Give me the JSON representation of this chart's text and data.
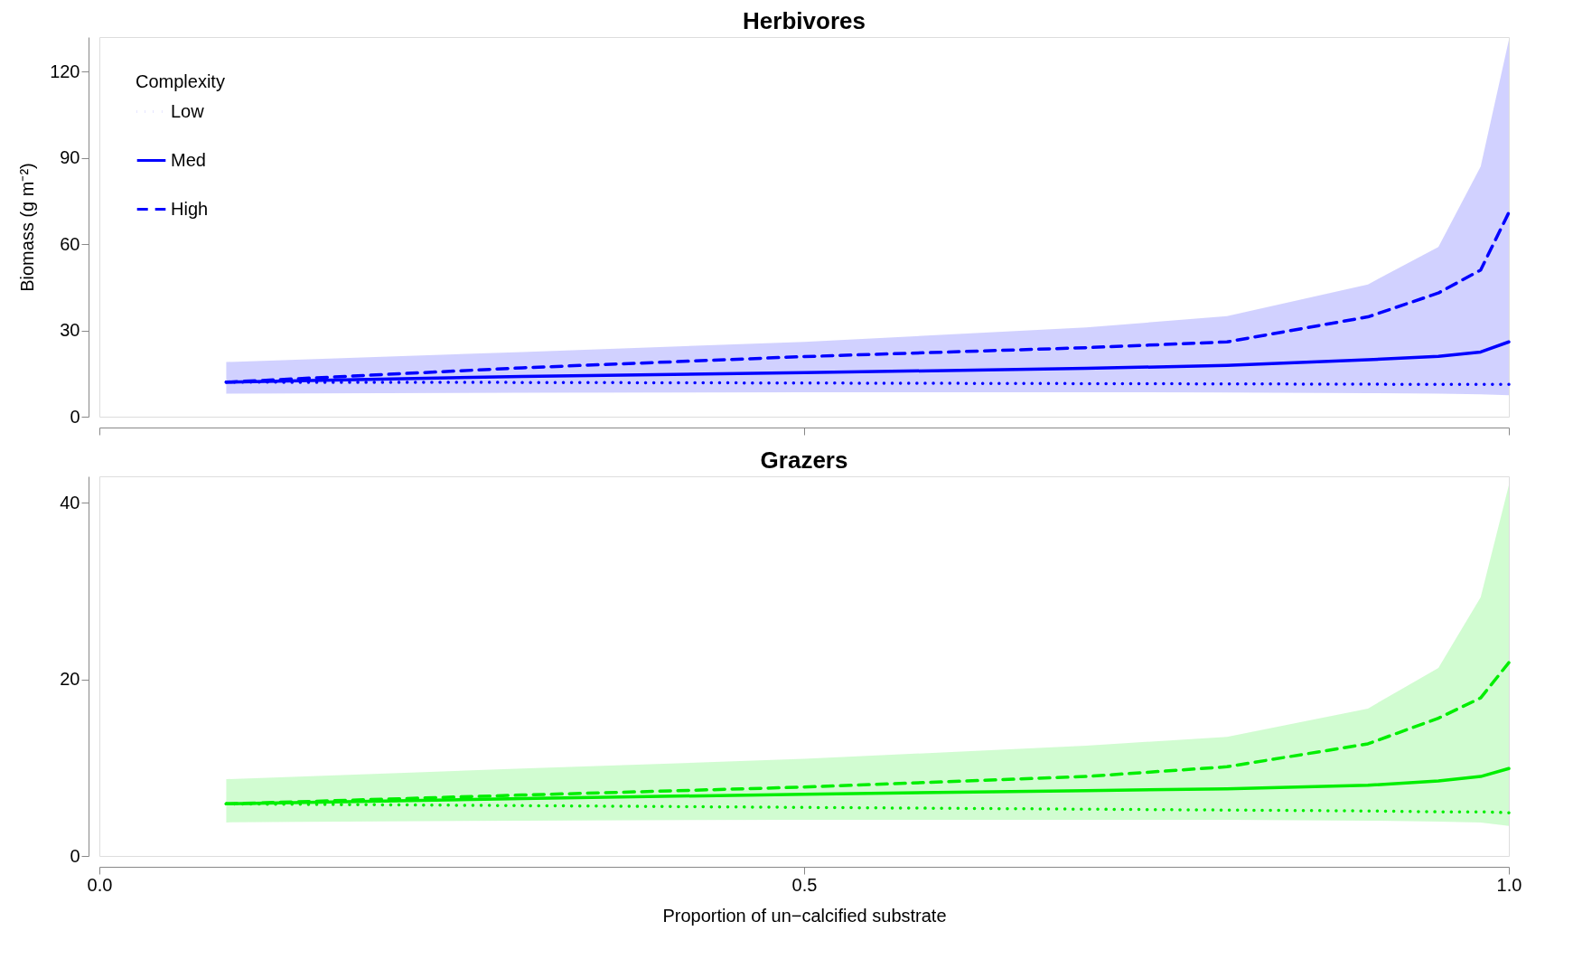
{
  "chart_data": [
    {
      "type": "line",
      "title": "Herbivores",
      "ylabel": "Biomass (g m⁻²)",
      "legend_title": "Complexity",
      "legend": "top left",
      "tick_labels": "y",
      "grid": false,
      "marker": "none",
      "x": [
        0.09,
        0.3,
        0.5,
        0.7,
        0.8,
        0.9,
        0.95,
        0.98,
        1.0
      ],
      "xlim": [
        0,
        1
      ],
      "xticks": [
        {
          "value": 0,
          "label": null
        },
        {
          "value": 0.5,
          "label": null
        },
        {
          "value": 1,
          "label": null
        }
      ],
      "ylim": [
        0,
        132
      ],
      "yticks": [
        0,
        30,
        60,
        90,
        120
      ],
      "series": [
        {
          "name": "Low",
          "color": "#0000ff",
          "line_style": "dotted",
          "values": [
            12,
            11.9,
            11.7,
            11.5,
            11.4,
            11.3,
            11.2,
            11.2,
            11.2
          ]
        },
        {
          "name": "Med",
          "color": "#0000ff",
          "line_style": "solid",
          "values": [
            12,
            14,
            15.3,
            16.8,
            17.8,
            19.8,
            21,
            22.5,
            26
          ]
        },
        {
          "name": "High",
          "color": "#0000ff",
          "line_style": "dashed",
          "values": [
            12,
            17,
            20.9,
            24,
            26,
            34.7,
            43,
            51,
            71
          ],
          "lower": [
            8,
            8.3,
            8.5,
            8.5,
            8.4,
            8.2,
            8,
            7.8,
            7.5
          ],
          "upper": [
            19,
            22.5,
            26,
            31,
            35,
            46,
            59,
            87,
            131
          ]
        }
      ]
    },
    {
      "type": "line",
      "title": "Grazers",
      "xlabel": "Proportion of un−calcified substrate",
      "legend": false,
      "grid": false,
      "marker": "none",
      "x": [
        0.09,
        0.3,
        0.5,
        0.7,
        0.8,
        0.9,
        0.95,
        0.98,
        1.0
      ],
      "xlim": [
        0,
        1
      ],
      "xticks": [
        {
          "value": 0,
          "label": "0.0"
        },
        {
          "value": 0.5,
          "label": "0.5"
        },
        {
          "value": 1,
          "label": "1.0"
        }
      ],
      "ylim": [
        0,
        43
      ],
      "yticks": [
        0,
        20,
        40
      ],
      "series": [
        {
          "color": "#00ee00",
          "line_style": "dotted",
          "values": [
            5.9,
            5.7,
            5.5,
            5.3,
            5.2,
            5.1,
            5,
            5,
            4.9
          ]
        },
        {
          "color": "#00ee00",
          "line_style": "solid",
          "values": [
            5.9,
            6.5,
            7,
            7.4,
            7.6,
            8,
            8.5,
            9,
            9.9
          ]
        },
        {
          "color": "#00ee00",
          "line_style": "dashed",
          "values": [
            5.9,
            6.9,
            7.8,
            9.0,
            10.1,
            12.7,
            15.6,
            17.9,
            21.9
          ],
          "lower": [
            3.8,
            4,
            4.1,
            4.1,
            4.1,
            4,
            3.9,
            3.8,
            3.4
          ],
          "upper": [
            8.7,
            9.9,
            11,
            12.5,
            13.5,
            16.7,
            21.3,
            29.3,
            42
          ]
        }
      ]
    }
  ]
}
